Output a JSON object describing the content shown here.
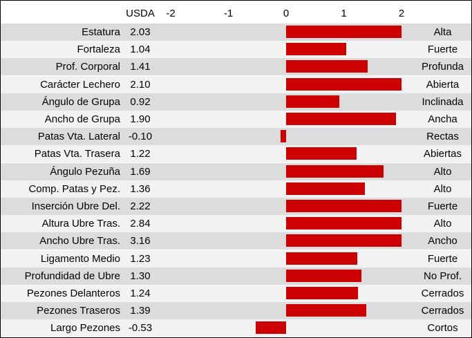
{
  "header": {
    "usda_label": "USDA",
    "ticks": [
      "-2",
      "-1",
      "0",
      "1",
      "2"
    ]
  },
  "colors": {
    "bar": "#cc0000",
    "row_even": "#dcdcdc",
    "row_odd": "#f2f2f2"
  },
  "chart_data": {
    "type": "bar",
    "orientation": "horizontal",
    "xlim": [
      -2,
      2
    ],
    "values_clipped_to_xlim": true,
    "categories": [
      "Estatura",
      "Fortaleza",
      "Prof. Corporal",
      "Carácter Lechero",
      "Ángulo de Grupa",
      "Ancho de Grupa",
      "Patas Vta. Lateral",
      "Patas Vta. Trasera",
      "Ángulo Pezuña",
      "Comp. Patas y Pez.",
      "Inserción Ubre Del.",
      "Altura Ubre Tras.",
      "Ancho Ubre Tras.",
      "Ligamento Medio",
      "Profundidad de Ubre",
      "Pezones Delanteros",
      "Pezones Traseros",
      "Largo Pezones"
    ],
    "values": [
      2.03,
      1.04,
      1.41,
      2.1,
      0.92,
      1.9,
      -0.1,
      1.22,
      1.69,
      1.36,
      2.22,
      2.84,
      3.16,
      1.23,
      1.3,
      1.24,
      1.39,
      -0.53
    ],
    "value_labels": [
      "2.03",
      "1.04",
      "1.41",
      "2.10",
      "0.92",
      "1.90",
      "-0.10",
      "1.22",
      "1.69",
      "1.36",
      "2.22",
      "2.84",
      "3.16",
      "1.23",
      "1.30",
      "1.24",
      "1.39",
      "-0.53"
    ],
    "descriptors": [
      "Alta",
      "Fuerte",
      "Profunda",
      "Abierta",
      "Inclinada",
      "Ancha",
      "Rectas",
      "Abiertas",
      "Alto",
      "Alto",
      "Fuerte",
      "Alto",
      "Ancho",
      "Fuerte",
      "No Prof.",
      "Cerrados",
      "Cerrados",
      "Cortos"
    ]
  }
}
